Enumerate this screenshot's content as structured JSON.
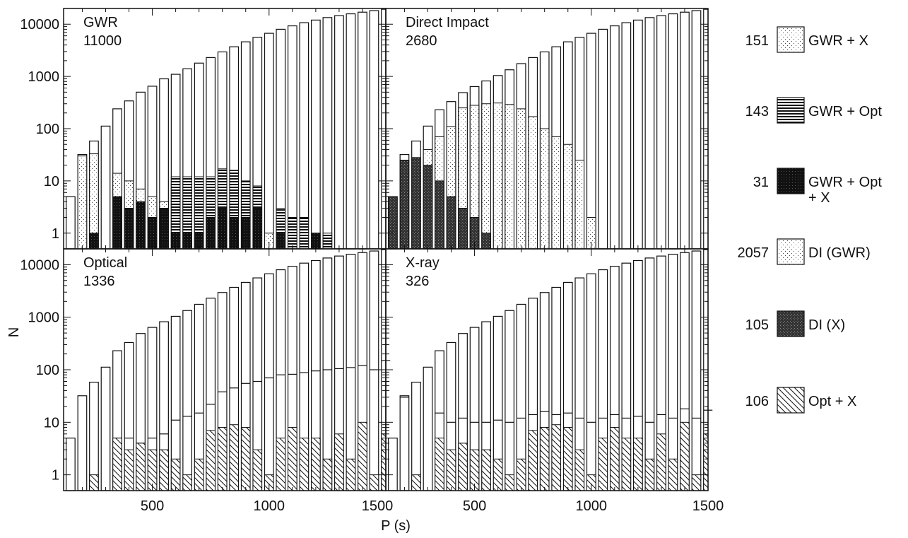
{
  "chart_data": {
    "type": "bar",
    "x_axis_label": "P (s)",
    "y_axis_label": "N",
    "y_scale": "log",
    "ylim": [
      0.5,
      20000
    ],
    "xlim": [
      120,
      1500
    ],
    "x_ticks": [
      "500",
      "1000",
      "1500"
    ],
    "y_ticks": [
      "1",
      "10",
      "100",
      "1000",
      "10000"
    ],
    "bin_width": 50,
    "x": [
      150,
      200,
      250,
      300,
      350,
      400,
      450,
      500,
      550,
      600,
      650,
      700,
      750,
      800,
      850,
      900,
      950,
      1000,
      1050,
      1100,
      1150,
      1200,
      1250,
      1300,
      1350,
      1400,
      1450,
      1500
    ],
    "totals": [
      5,
      32,
      58,
      112,
      230,
      330,
      490,
      640,
      820,
      1040,
      1340,
      1760,
      2300,
      2950,
      3700,
      4600,
      5600,
      6700,
      8000,
      9300,
      10700,
      12000,
      13400,
      14600,
      15800,
      17000,
      18200,
      19300
    ],
    "panels": [
      {
        "label": "GWR",
        "count": "11000",
        "subsets": [
          {
            "pattern": "sparse",
            "values": [
              null,
              30,
              33,
              null,
              14,
              10,
              7,
              5,
              4,
              9,
              4,
              5,
              4,
              10,
              6,
              6,
              4,
              1,
              null,
              null,
              null,
              null,
              null,
              null,
              null,
              null,
              null,
              null
            ]
          },
          {
            "pattern": "hlines",
            "values": [
              null,
              null,
              null,
              null,
              null,
              null,
              null,
              null,
              null,
              12,
              12,
              12,
              12,
              17,
              16,
              10,
              8,
              null,
              3,
              2,
              2,
              1,
              1,
              null,
              null,
              null,
              null,
              null
            ]
          },
          {
            "pattern": "black",
            "values": [
              null,
              null,
              1,
              null,
              5,
              3,
              4,
              2,
              3,
              1,
              1,
              1,
              2,
              3,
              2,
              2,
              3,
              null,
              1,
              null,
              null,
              1,
              null,
              null,
              null,
              null,
              null,
              null
            ]
          }
        ],
        "tops": [
          5,
          32,
          58,
          112,
          240,
          340,
          500,
          650,
          900,
          1100,
          1400,
          1800,
          2300,
          2950,
          3700,
          4600,
          5600,
          6700,
          8000,
          9300,
          10700,
          12000,
          13400,
          14600,
          15800,
          17000,
          18200,
          19300
        ]
      },
      {
        "label": "Direct Impact",
        "count": "2680",
        "subsets": [
          {
            "pattern": "sparse",
            "values": [
              null,
              null,
              null,
              40,
              70,
              110,
              250,
              280,
              300,
              310,
              290,
              240,
              170,
              100,
              70,
              50,
              25,
              2,
              null,
              null,
              null,
              null,
              null,
              null,
              null,
              null,
              null,
              null
            ]
          },
          {
            "pattern": "dark",
            "values": [
              5,
              25,
              28,
              20,
              10,
              5,
              3,
              2,
              1,
              null,
              null,
              null,
              null,
              null,
              null,
              null,
              null,
              null,
              null,
              null,
              null,
              null,
              null,
              null,
              null,
              null,
              null,
              null
            ]
          }
        ],
        "tops": [
          5,
          32,
          58,
          112,
          230,
          330,
          490,
          640,
          820,
          1040,
          1340,
          1760,
          2300,
          2950,
          3700,
          4600,
          5600,
          6700,
          8000,
          9300,
          10700,
          12000,
          13400,
          14600,
          15800,
          17000,
          18200,
          19300
        ]
      },
      {
        "label": "Optical",
        "count": "1336",
        "subsets": [
          {
            "pattern": "hatch",
            "values": [
              null,
              null,
              1,
              null,
              5,
              3,
              4,
              3,
              3,
              2,
              1,
              2,
              7,
              8,
              9,
              8,
              3,
              1,
              5,
              8,
              5,
              5,
              2,
              6,
              2,
              10,
              1,
              6
            ]
          }
        ],
        "mid": [
          null,
          null,
          null,
          null,
          5,
          5,
          4,
          5,
          6,
          11,
          13,
          15,
          22,
          38,
          45,
          55,
          60,
          70,
          80,
          82,
          88,
          95,
          100,
          105,
          110,
          120,
          100,
          150
        ],
        "tops": [
          5,
          32,
          58,
          112,
          230,
          330,
          490,
          640,
          820,
          1040,
          1340,
          1760,
          2300,
          2950,
          3700,
          4600,
          5600,
          6700,
          8000,
          9300,
          10700,
          12000,
          13400,
          14600,
          15800,
          17000,
          18200,
          19300
        ]
      },
      {
        "label": "X-ray",
        "count": "326",
        "subsets": [
          {
            "pattern": "hatch",
            "values": [
              null,
              null,
              1,
              null,
              5,
              3,
              4,
              3,
              3,
              2,
              1,
              2,
              7,
              8,
              9,
              8,
              3,
              1,
              5,
              8,
              5,
              5,
              2,
              6,
              2,
              10,
              1,
              6
            ]
          }
        ],
        "mid": [
          null,
          30,
          null,
          null,
          15,
          10,
          12,
          10,
          10,
          11,
          10,
          12,
          14,
          16,
          14,
          15,
          12,
          10,
          12,
          14,
          12,
          13,
          10,
          14,
          12,
          18,
          12,
          17
        ],
        "tops": [
          5,
          32,
          58,
          112,
          230,
          330,
          490,
          640,
          820,
          1040,
          1340,
          1760,
          2300,
          2950,
          3700,
          4600,
          5600,
          6700,
          8000,
          9300,
          10700,
          12000,
          13400,
          14600,
          15800,
          17000,
          18200,
          19300
        ]
      }
    ],
    "legend": [
      {
        "count": "151",
        "label": "GWR + X",
        "pattern": "sparse"
      },
      {
        "count": "143",
        "label": "GWR + Opt",
        "pattern": "hlines"
      },
      {
        "count": "31",
        "label": "GWR + Opt\n+ X",
        "pattern": "black"
      },
      {
        "count": "2057",
        "label": "DI (GWR)",
        "pattern": "sparse"
      },
      {
        "count": "105",
        "label": "DI (X)",
        "pattern": "dark"
      },
      {
        "count": "106",
        "label": "Opt + X",
        "pattern": "hatch"
      }
    ]
  }
}
